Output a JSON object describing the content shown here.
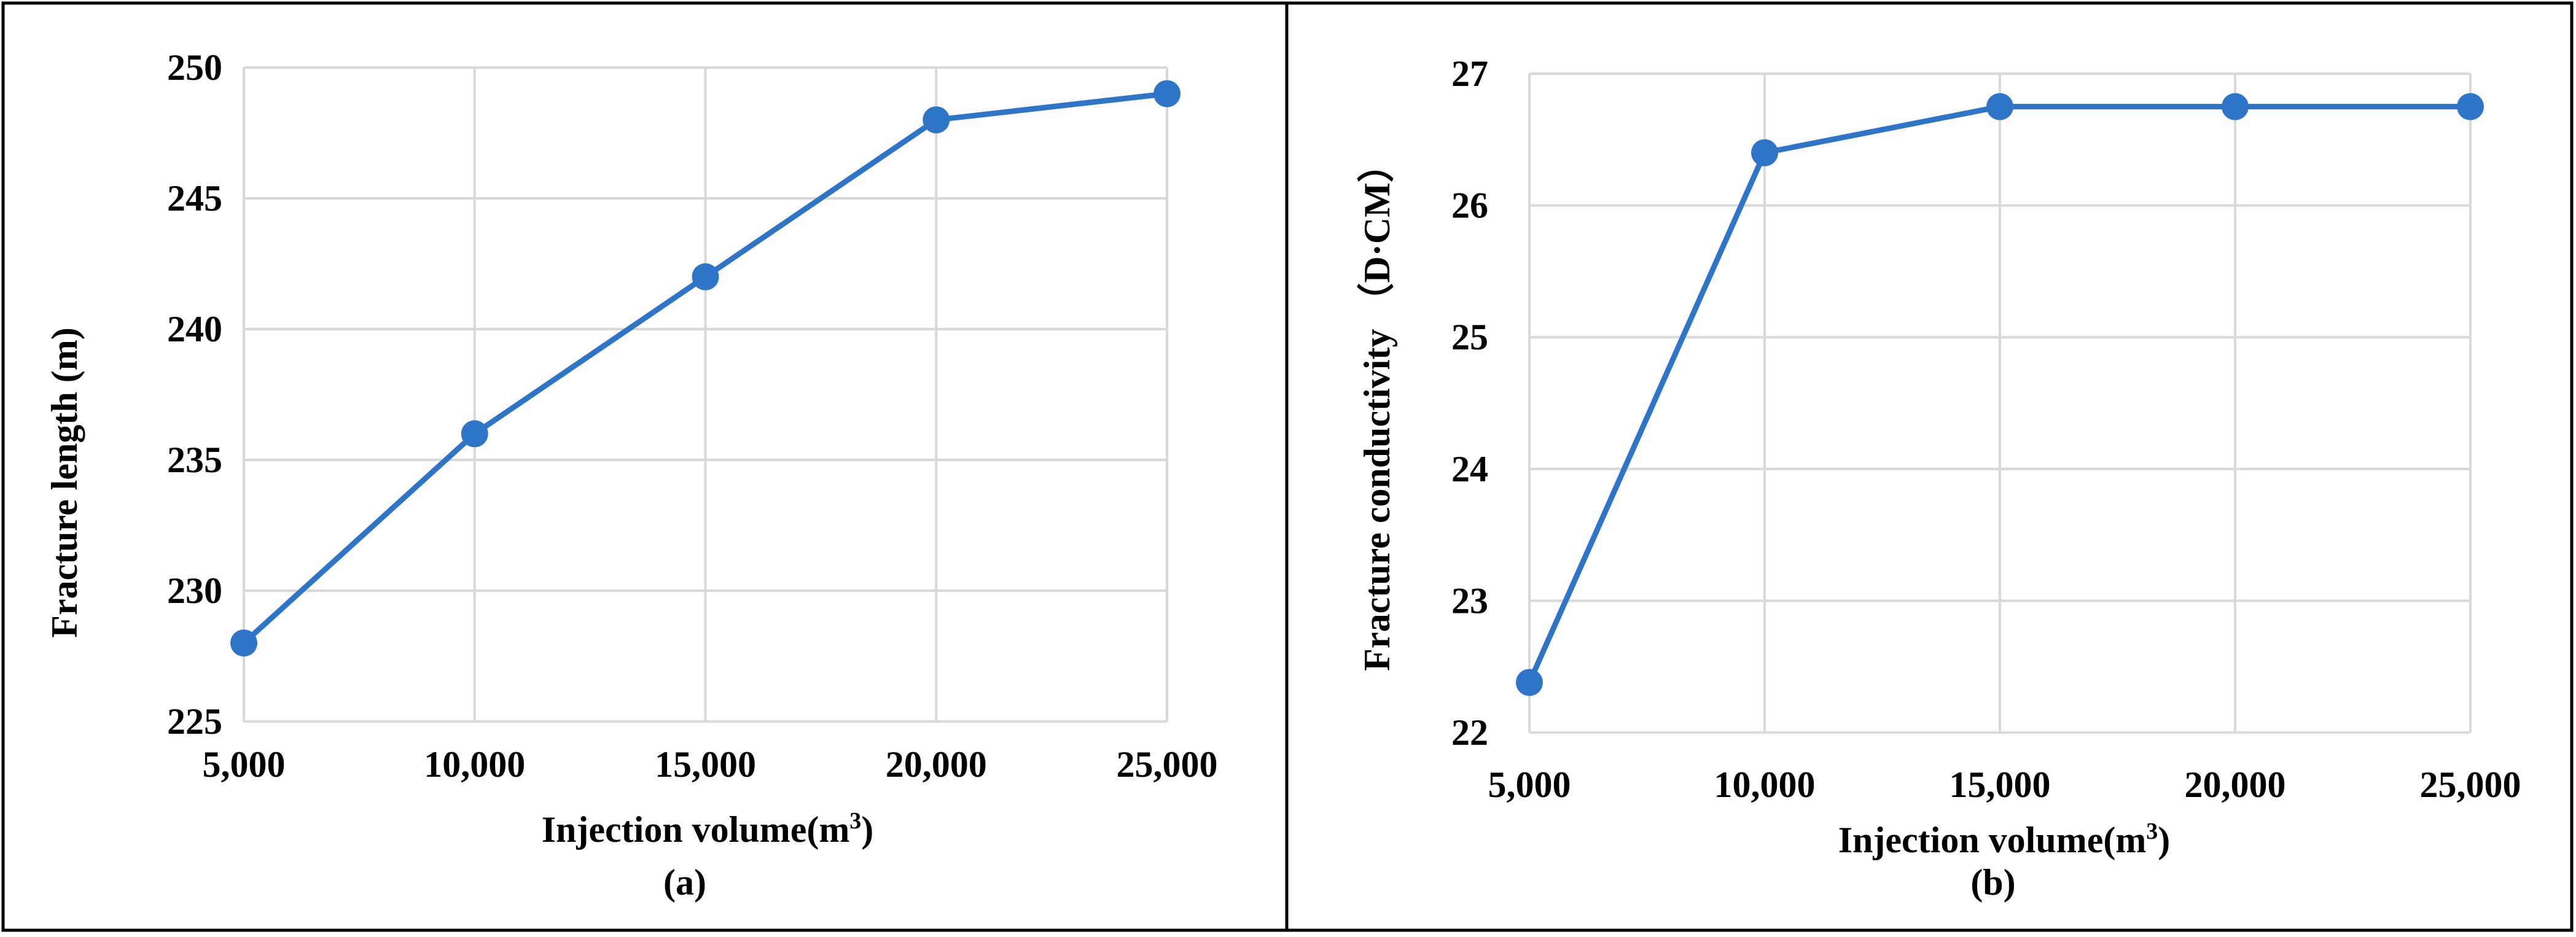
{
  "chart_data": [
    {
      "type": "line",
      "caption": "(a)",
      "xlabel_main": "Injection volume(m",
      "xlabel_sup": "3",
      "xlabel_end": ")",
      "ylabel": "Fracture length (m)",
      "x": [
        5000,
        10000,
        15000,
        20000,
        25000
      ],
      "x_tick_labels": [
        "5,000",
        "10,000",
        "15,000",
        "20,000",
        "25,000"
      ],
      "y_ticks": [
        225,
        230,
        235,
        240,
        245,
        250
      ],
      "ylim": [
        225,
        250
      ],
      "series": [
        {
          "name": "Fracture length",
          "color": "#2e75c8",
          "values": [
            228,
            236,
            242,
            248,
            249
          ]
        }
      ],
      "grid": true
    },
    {
      "type": "line",
      "caption": "(b)",
      "xlabel_main": "Injection volume(m",
      "xlabel_sup": "3",
      "xlabel_end": ")",
      "ylabel": "Fracture conductivity （D·CM）",
      "x": [
        5000,
        10000,
        15000,
        20000,
        25000
      ],
      "x_tick_labels": [
        "5,000",
        "10,000",
        "15,000",
        "20,000",
        "25,000"
      ],
      "y_ticks": [
        22,
        23,
        24,
        25,
        26,
        27
      ],
      "ylim": [
        22,
        27
      ],
      "series": [
        {
          "name": "Fracture conductivity",
          "color": "#2e75c8",
          "values": [
            22.38,
            26.4,
            26.75,
            26.75,
            26.75
          ]
        }
      ],
      "grid": true
    }
  ]
}
